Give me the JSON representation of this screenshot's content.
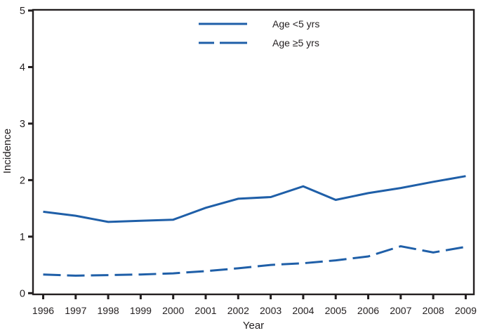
{
  "figure": {
    "background": "#ffffff",
    "axis_color": "#231f20",
    "text_color": "#231f20",
    "accent_color": "#1f5fa8"
  },
  "chart_data": {
    "type": "line",
    "title": "",
    "xlabel": "Year",
    "ylabel": "Incidence",
    "ylim": [
      0,
      5
    ],
    "yticks": [
      0,
      1,
      2,
      3,
      4,
      5
    ],
    "grid": false,
    "legend_position": "top-center",
    "x": [
      "1996",
      "1997",
      "1998",
      "1999",
      "2000",
      "2001",
      "2002",
      "2003",
      "2004",
      "2005",
      "2006",
      "2007",
      "2008",
      "2009"
    ],
    "series": [
      {
        "name": "Age <5 yrs",
        "style": "solid",
        "color": "#1f5fa8",
        "values": [
          1.44,
          1.37,
          1.26,
          1.28,
          1.3,
          1.51,
          1.67,
          1.7,
          1.89,
          1.65,
          1.77,
          1.86,
          1.97,
          2.07
        ]
      },
      {
        "name": "Age ≥5 yrs",
        "style": "dashed",
        "color": "#1f5fa8",
        "values": [
          0.33,
          0.31,
          0.32,
          0.33,
          0.35,
          0.39,
          0.44,
          0.5,
          0.53,
          0.58,
          0.65,
          0.83,
          0.72,
          0.82
        ]
      }
    ]
  }
}
